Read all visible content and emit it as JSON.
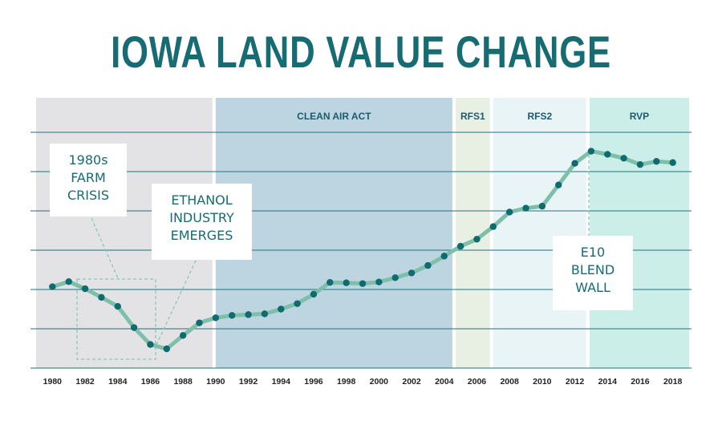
{
  "chart_data": {
    "type": "line",
    "title": "IOWA LAND VALUE CHANGE",
    "x_ticks": [
      "1980",
      "1982",
      "1984",
      "1986",
      "1988",
      "1990",
      "1992",
      "1994",
      "1996",
      "1998",
      "2000",
      "2002",
      "2004",
      "2006",
      "2008",
      "2010",
      "2012",
      "2014",
      "2016",
      "2018"
    ],
    "xlim": [
      1979,
      2019
    ],
    "ylim": [
      0,
      6
    ],
    "grid": true,
    "series": [
      {
        "x": [
          1980,
          1981,
          1982,
          1983,
          1984,
          1985,
          1986,
          1987,
          1988,
          1989,
          1990,
          1991,
          1992,
          1993,
          1994,
          1995,
          1996,
          1997,
          1998,
          1999,
          2000,
          2001,
          2002,
          2003,
          2004,
          2005,
          2006,
          2007,
          2008,
          2009,
          2010,
          2011,
          2012,
          2013,
          2014,
          2015,
          2016,
          2017,
          2018
        ],
        "y": [
          2.07,
          2.2,
          2.02,
          1.8,
          1.57,
          1.03,
          0.6,
          0.49,
          0.83,
          1.15,
          1.28,
          1.34,
          1.36,
          1.38,
          1.5,
          1.64,
          1.88,
          2.18,
          2.17,
          2.15,
          2.19,
          2.3,
          2.42,
          2.61,
          2.85,
          3.1,
          3.28,
          3.6,
          3.97,
          4.07,
          4.12,
          4.66,
          5.21,
          5.52,
          5.44,
          5.34,
          5.18,
          5.26,
          5.23
        ]
      }
    ],
    "bands": [
      {
        "label": "",
        "start": 1979,
        "end": 1989.8,
        "color": "#e3e3e5"
      },
      {
        "label": "CLEAN AIR ACT",
        "start": 1990,
        "end": 2004.5,
        "color": "#bdd5e1"
      },
      {
        "label": "RFS1",
        "start": 2004.7,
        "end": 2006.8,
        "color": "#e8f0e3"
      },
      {
        "label": "RFS2",
        "start": 2007,
        "end": 2012.7,
        "color": "#e8f4f6"
      },
      {
        "label": "RVP",
        "start": 2012.9,
        "end": 2019,
        "color": "#cbeee9"
      }
    ],
    "annotations": [
      {
        "lines": [
          "1980s",
          "FARM",
          "CRISIS"
        ]
      },
      {
        "lines": [
          "ETHANOL",
          "INDUSTRY",
          "EMERGES"
        ]
      },
      {
        "lines": [
          "E10",
          "BLEND",
          "WALL"
        ]
      }
    ],
    "colors": {
      "line": "#7dbfa9",
      "marker": "#0f6b6f",
      "grid": "#1e7280",
      "title": "#176b73",
      "band_label": "#1e5a6e",
      "dashed": "#8cc5b8"
    }
  }
}
